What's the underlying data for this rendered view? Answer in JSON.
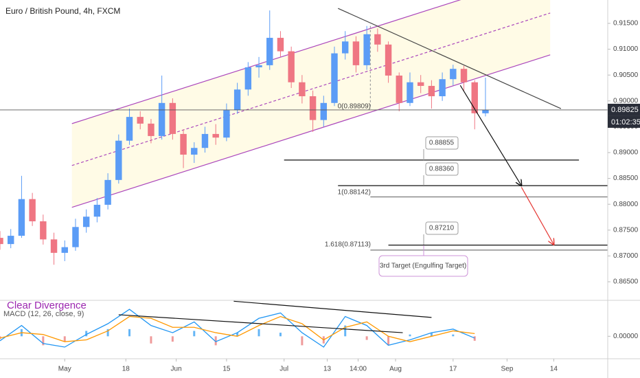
{
  "chart_data": {
    "type": "candlestick",
    "title": "Euro / British Pound, 4h, FXCM",
    "x": [
      "04-13",
      "04-16",
      "04-19",
      "04-22",
      "04-25",
      "04-28",
      "05-01",
      "05-04",
      "05-07",
      "05-10",
      "05-13",
      "05-16",
      "05-19",
      "05-22",
      "05-25",
      "05-28",
      "05-31",
      "06-03",
      "06-06",
      "06-09",
      "06-12",
      "06-15",
      "06-18",
      "06-21",
      "06-24",
      "06-27",
      "06-30",
      "07-03",
      "07-06",
      "07-09",
      "07-12",
      "07-15",
      "07-18",
      "07-21",
      "07-24",
      "07-27",
      "07-30",
      "08-02",
      "08-05",
      "08-08",
      "08-11",
      "08-14",
      "08-17",
      "08-20",
      "08-23",
      "08-26"
    ],
    "open": [
      0.8735,
      0.8723,
      0.8739,
      0.881,
      0.8767,
      0.8732,
      0.8706,
      0.8717,
      0.8756,
      0.8776,
      0.8799,
      0.8847,
      0.8923,
      0.8969,
      0.8956,
      0.8932,
      0.8996,
      0.8936,
      0.8896,
      0.8909,
      0.8936,
      0.8929,
      0.8982,
      0.9022,
      0.9065,
      0.9069,
      0.9122,
      0.9096,
      0.9036,
      0.9009,
      0.8963,
      0.8996,
      0.9092,
      0.9115,
      0.9069,
      0.9129,
      0.9109,
      0.9049,
      0.8996,
      0.9036,
      0.9029,
      0.9009,
      0.9042,
      0.9062,
      0.9036,
      0.8976
    ],
    "high": [
      0.8748,
      0.8752,
      0.8855,
      0.8822,
      0.878,
      0.8745,
      0.873,
      0.8772,
      0.879,
      0.8812,
      0.886,
      0.8935,
      0.8985,
      0.898,
      0.8965,
      0.9049,
      0.9005,
      0.8945,
      0.892,
      0.895,
      0.8955,
      0.8995,
      0.9035,
      0.9075,
      0.9085,
      0.9175,
      0.9135,
      0.9105,
      0.905,
      0.902,
      0.901,
      0.9105,
      0.9135,
      0.9125,
      0.9145,
      0.914,
      0.9115,
      0.9055,
      0.9055,
      0.905,
      0.904,
      0.9055,
      0.907,
      0.9068,
      0.904,
      0.9045
    ],
    "low": [
      0.8712,
      0.8715,
      0.8735,
      0.8758,
      0.8722,
      0.8683,
      0.869,
      0.871,
      0.8745,
      0.8765,
      0.879,
      0.884,
      0.8915,
      0.8945,
      0.8918,
      0.8925,
      0.8925,
      0.887,
      0.888,
      0.89,
      0.8915,
      0.8922,
      0.8975,
      0.901,
      0.9045,
      0.906,
      0.9085,
      0.9025,
      0.8995,
      0.894,
      0.895,
      0.899,
      0.908,
      0.9055,
      0.906,
      0.9095,
      0.9035,
      0.898,
      0.899,
      0.9015,
      0.8985,
      0.9,
      0.903,
      0.902,
      0.8945,
      0.897
    ],
    "close": [
      0.8723,
      0.8739,
      0.881,
      0.8767,
      0.8732,
      0.8706,
      0.8717,
      0.8756,
      0.8776,
      0.8799,
      0.8847,
      0.8923,
      0.8969,
      0.8956,
      0.8932,
      0.8996,
      0.8936,
      0.8896,
      0.8909,
      0.8936,
      0.8929,
      0.8982,
      0.9022,
      0.9065,
      0.9069,
      0.9122,
      0.9096,
      0.9036,
      0.9009,
      0.8963,
      0.8996,
      0.9092,
      0.9115,
      0.9069,
      0.9129,
      0.9109,
      0.9049,
      0.8996,
      0.9036,
      0.9029,
      0.9009,
      0.9042,
      0.9062,
      0.9036,
      0.8976,
      0.8983
    ],
    "up_color": "#5b9cf6",
    "down_color": "#ef7683",
    "xlim": [
      "04-13",
      "09-29"
    ],
    "xticks": [
      {
        "value": "05-01",
        "label": "May"
      },
      {
        "value": "05-18",
        "label": "18"
      },
      {
        "value": "06-01",
        "label": "Jun"
      },
      {
        "value": "06-15",
        "label": "15"
      },
      {
        "value": "07-01",
        "label": "Jul"
      },
      {
        "value": "07-13",
        "label": "13"
      },
      {
        "value": "07-21 14:00",
        "label": "14:00"
      },
      {
        "value": "08-01",
        "label": "Aug"
      },
      {
        "value": "08-17",
        "label": "17"
      },
      {
        "value": "09-01",
        "label": "Sep"
      },
      {
        "value": "09-14",
        "label": "14"
      }
    ],
    "ylim": [
      0.86141,
      0.91952
    ],
    "yticks": [
      {
        "value": 0.865,
        "label": "0.86500"
      },
      {
        "value": 0.87,
        "label": "0.87000"
      },
      {
        "value": 0.875,
        "label": "0.87500"
      },
      {
        "value": 0.88,
        "label": "0.88000"
      },
      {
        "value": 0.885,
        "label": "0.88500"
      },
      {
        "value": 0.89,
        "label": "0.89000"
      },
      {
        "value": 0.895,
        "label": "0.89500"
      },
      {
        "value": 0.9,
        "label": "0.90000"
      },
      {
        "value": 0.905,
        "label": "0.90500"
      },
      {
        "value": 0.91,
        "label": "0.91000"
      },
      {
        "value": 0.915,
        "label": "0.91500"
      }
    ],
    "last_price": 0.89825,
    "countdown": "01:02:35",
    "channel": {
      "x": [
        "05-03",
        "09-13"
      ],
      "upper": [
        0.8956,
        0.9251
      ],
      "middle": [
        0.8875,
        0.917
      ],
      "lower": [
        0.8794,
        0.9089
      ],
      "color": "#ab47bc",
      "fill": "#fffbe6"
    },
    "drawings": [
      {
        "x": [
          "07-16",
          "09-16"
        ],
        "y": [
          0.9179,
          0.8985
        ],
        "color": "#444444"
      },
      {
        "x": [
          "07-01",
          "09-21"
        ],
        "y": [
          0.88855,
          0.88855
        ],
        "color": "#111111"
      },
      {
        "x": [
          "07-16",
          "09-29"
        ],
        "y": [
          0.8836,
          0.8836
        ],
        "color": "#111111"
      },
      {
        "x": [
          "07-25",
          "09-29"
        ],
        "y": [
          0.88142,
          0.88142
        ],
        "color": "#777777"
      },
      {
        "x": [
          "07-30",
          "09-29"
        ],
        "y": [
          0.8721,
          0.8721
        ],
        "color": "#111111"
      },
      {
        "x": [
          "07-25",
          "09-29"
        ],
        "y": [
          0.87113,
          0.87113
        ],
        "color": "#777777"
      },
      {
        "x": [
          "07-25",
          "07-25"
        ],
        "y": [
          0.9145,
          0.8985
        ],
        "color": "#9e9e9e",
        "dash": true
      },
      {
        "x": [
          "08-19",
          "09-05"
        ],
        "y": [
          0.903,
          0.8836
        ],
        "color": "#111111",
        "arrow": true
      },
      {
        "x": [
          "09-05",
          "09-14"
        ],
        "y": [
          0.8833,
          0.8722
        ],
        "color": "#e53935",
        "arrow": true
      },
      {
        "x": [
          "05-16",
          "08-03"
        ],
        "y": [
          0.0024,
          0.0004
        ],
        "color": "#111111",
        "pane": "macd"
      },
      {
        "x": [
          "06-17",
          "08-11"
        ],
        "y": [
          0.0039,
          0.0021
        ],
        "color": "#111111",
        "pane": "macd"
      }
    ],
    "annotations": [
      "0(0.89809)",
      "1(0.88142)",
      "1.618(0.87113)",
      "0.88855",
      "0.88360",
      "0.87210",
      "3rd Target (Engulfing Target)",
      "Clear Divergence"
    ],
    "macd": {
      "type": "line",
      "label": "MACD (12, 26, close, 9)",
      "x": [
        "04-13",
        "04-19",
        "04-25",
        "05-01",
        "05-07",
        "05-13",
        "05-19",
        "05-25",
        "05-31",
        "06-06",
        "06-12",
        "06-18",
        "06-24",
        "06-30",
        "07-06",
        "07-12",
        "07-18",
        "07-24",
        "07-30",
        "08-05",
        "08-11",
        "08-17",
        "08-23"
      ],
      "series": [
        {
          "color": "#2196f3",
          "values": [
            -0.0005,
            0.0012,
            -0.0008,
            -0.0012,
            0.0002,
            0.0014,
            0.003,
            0.0012,
            0.0004,
            0.0016,
            -0.0006,
            0.0004,
            0.002,
            0.0026,
            0.0004,
            -0.0012,
            0.0022,
            0.0012,
            -0.001,
            -0.0004,
            0.0004,
            0.0008,
            -0.0002
          ]
        },
        {
          "color": "#ff9800",
          "values": [
            -0.0002,
            0.0004,
            0.0002,
            -0.0006,
            -0.0004,
            0.0006,
            0.0022,
            0.002,
            0.001,
            0.001,
            0.0004,
            0.0,
            0.0012,
            0.0022,
            0.0014,
            -0.0004,
            0.001,
            0.0016,
            0.0,
            -0.0006,
            0.0,
            0.0006,
            0.0003
          ]
        }
      ],
      "histogram": {
        "up_color": "#64b5f6",
        "down_color": "#ef9a9a",
        "values": [
          -0.0003,
          0.0008,
          -0.001,
          -0.0006,
          0.0006,
          0.0008,
          0.0008,
          -0.0008,
          -0.0006,
          0.0006,
          -0.001,
          0.0004,
          0.0008,
          0.0004,
          -0.001,
          -0.0008,
          0.0012,
          -0.0004,
          -0.001,
          0.0002,
          0.0004,
          0.0002,
          -0.0005
        ]
      },
      "ylim": [
        -0.0025,
        0.004
      ],
      "yticks": [
        {
          "value": 0,
          "label": "0.00000"
        }
      ]
    }
  }
}
